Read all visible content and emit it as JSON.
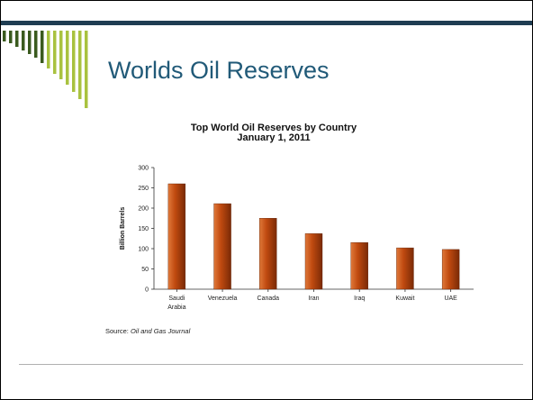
{
  "slide": {
    "title": "Worlds Oil Reserves",
    "source_label": "Source:",
    "source_name": "Oil and Gas Journal"
  },
  "colors": {
    "accent_bar": "#1f3d52",
    "stripe_dark": "#3a5a1e",
    "stripe_light": "#a9c23f",
    "bar_fill": "#c04a10"
  },
  "chart_data": {
    "type": "bar",
    "title": "Top World Oil Reserves by Country",
    "subtitle": "January 1, 2011",
    "ylabel": "Billion Barrels",
    "xlabel": "",
    "ylim": [
      0,
      300
    ],
    "yticks": [
      0,
      50,
      100,
      150,
      200,
      250,
      300
    ],
    "categories": [
      "Saudi\nArabia",
      "Venezuela",
      "Canada",
      "Iran",
      "Iraq",
      "Kuwait",
      "UAE"
    ],
    "values": [
      260,
      211,
      175,
      137,
      115,
      102,
      98
    ],
    "grid": false,
    "legend": "none"
  }
}
